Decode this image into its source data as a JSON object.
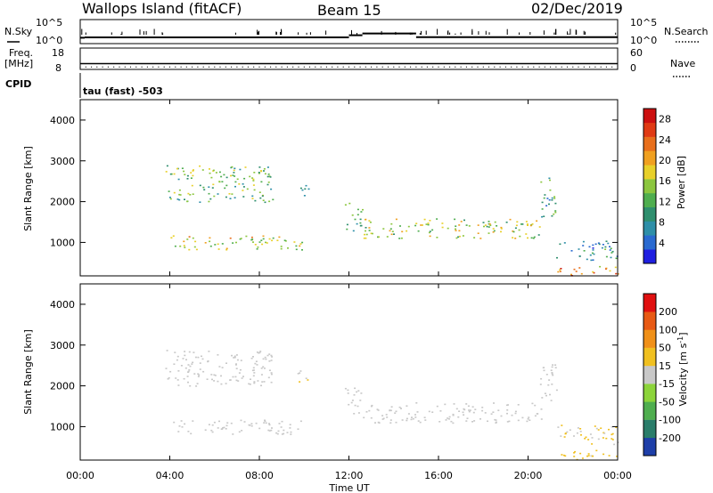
{
  "header": {
    "station": "Wallops Island (fitACF)",
    "beam": "Beam 15",
    "date": "02/Dec/2019"
  },
  "chart_data": [
    {
      "type": "line",
      "panel": "nsky-nsearch",
      "left_label": "N.Sky",
      "right_label": "N.Search",
      "left_ticks": [
        "10^5",
        "10^0"
      ],
      "right_ticks": [
        "10^5",
        "10^0"
      ],
      "note": "noise trace, log scale",
      "segments": [
        {
          "t": [
            0.0,
            0.2
          ],
          "value": 10.0
        },
        {
          "t": [
            0.2,
            12.0
          ],
          "value": 12.0
        },
        {
          "t": [
            12.0,
            12.6
          ],
          "value": 40.0
        },
        {
          "t": [
            12.6,
            15.0
          ],
          "value": 110.0
        },
        {
          "t": [
            15.0,
            24.0
          ],
          "value": 14.0
        }
      ]
    },
    {
      "type": "line",
      "panel": "freq-nave",
      "left_label": "Freq.",
      "left_unit": "[MHz]",
      "right_label": "Nave",
      "left_ticks": [
        "18",
        "8"
      ],
      "right_ticks": [
        "60",
        "0"
      ],
      "freq_mhz": 10.5,
      "nave": 5
    },
    {
      "type": "text",
      "panel": "cpid",
      "label": "CPID",
      "value": "tau (fast) -503"
    },
    {
      "type": "heatmap",
      "panel": "power",
      "ylabel": "Slant Range [km]",
      "ylim": [
        180,
        4500
      ],
      "yticks": [
        1000,
        2000,
        3000,
        4000
      ],
      "colorbar": {
        "label": "Power [dB]",
        "ticks": [
          "4",
          "8",
          "12",
          "16",
          "20",
          "24",
          "28"
        ],
        "range": [
          0,
          30
        ],
        "colors": [
          "#1f1fe0",
          "#2a6ad0",
          "#2e8fa8",
          "#2f8f6e",
          "#4fae4f",
          "#8cc63f",
          "#e8d02a",
          "#f0a020",
          "#e86f1c",
          "#e03a14",
          "#cc1010"
        ]
      },
      "regions": [
        {
          "t": [
            3.8,
            8.6
          ],
          "r": [
            2000,
            2900
          ],
          "level": 13
        },
        {
          "t": [
            9.7,
            10.2
          ],
          "r": [
            2100,
            2500
          ],
          "level": 9
        },
        {
          "t": [
            3.9,
            9.9
          ],
          "r": [
            820,
            1180
          ],
          "level": 17
        },
        {
          "t": [
            11.8,
            12.6
          ],
          "r": [
            1300,
            2000
          ],
          "level": 11
        },
        {
          "t": [
            12.6,
            20.6
          ],
          "r": [
            1100,
            1600
          ],
          "level": 16
        },
        {
          "t": [
            20.5,
            21.3
          ],
          "r": [
            1600,
            2600
          ],
          "level": 10
        },
        {
          "t": [
            21.2,
            24.0
          ],
          "r": [
            580,
            1050
          ],
          "level": 8
        },
        {
          "t": [
            21.3,
            24.0
          ],
          "r": [
            200,
            440
          ],
          "level": 22
        }
      ]
    },
    {
      "type": "heatmap",
      "panel": "velocity",
      "ylabel": "Slant Range [km]",
      "ylim": [
        180,
        4500
      ],
      "yticks": [
        1000,
        2000,
        3000,
        4000
      ],
      "colorbar": {
        "label": "Velocity [m s^-1]",
        "ticks": [
          "200",
          "100",
          "50",
          "15",
          "-15",
          "-50",
          "-100",
          "-200"
        ],
        "range": [
          -250,
          250
        ],
        "colors": [
          "#1e3fa8",
          "#2a7d6a",
          "#4fae4f",
          "#8cd43a",
          "#c8c8c8",
          "#f0c020",
          "#f09018",
          "#e85a14",
          "#e01010"
        ]
      },
      "regions": [
        {
          "t": [
            3.8,
            8.6
          ],
          "r": [
            2000,
            2900
          ],
          "level": 0
        },
        {
          "t": [
            9.7,
            10.2
          ],
          "r": [
            2100,
            2500
          ],
          "level": 20
        },
        {
          "t": [
            3.9,
            9.9
          ],
          "r": [
            820,
            1180
          ],
          "level": -5
        },
        {
          "t": [
            11.8,
            12.6
          ],
          "r": [
            1300,
            2000
          ],
          "level": 0
        },
        {
          "t": [
            12.6,
            20.6
          ],
          "r": [
            1100,
            1600
          ],
          "level": 0
        },
        {
          "t": [
            20.5,
            21.3
          ],
          "r": [
            1600,
            2600
          ],
          "level": 10
        },
        {
          "t": [
            21.2,
            24.0
          ],
          "r": [
            580,
            1050
          ],
          "level": 30
        },
        {
          "t": [
            21.3,
            24.0
          ],
          "r": [
            200,
            440
          ],
          "level": 40
        }
      ]
    }
  ],
  "xaxis": {
    "label": "Time UT",
    "ticks": [
      "00:00",
      "04:00",
      "08:00",
      "12:00",
      "16:00",
      "20:00",
      "00:00"
    ],
    "range_hours": [
      0,
      24
    ]
  }
}
